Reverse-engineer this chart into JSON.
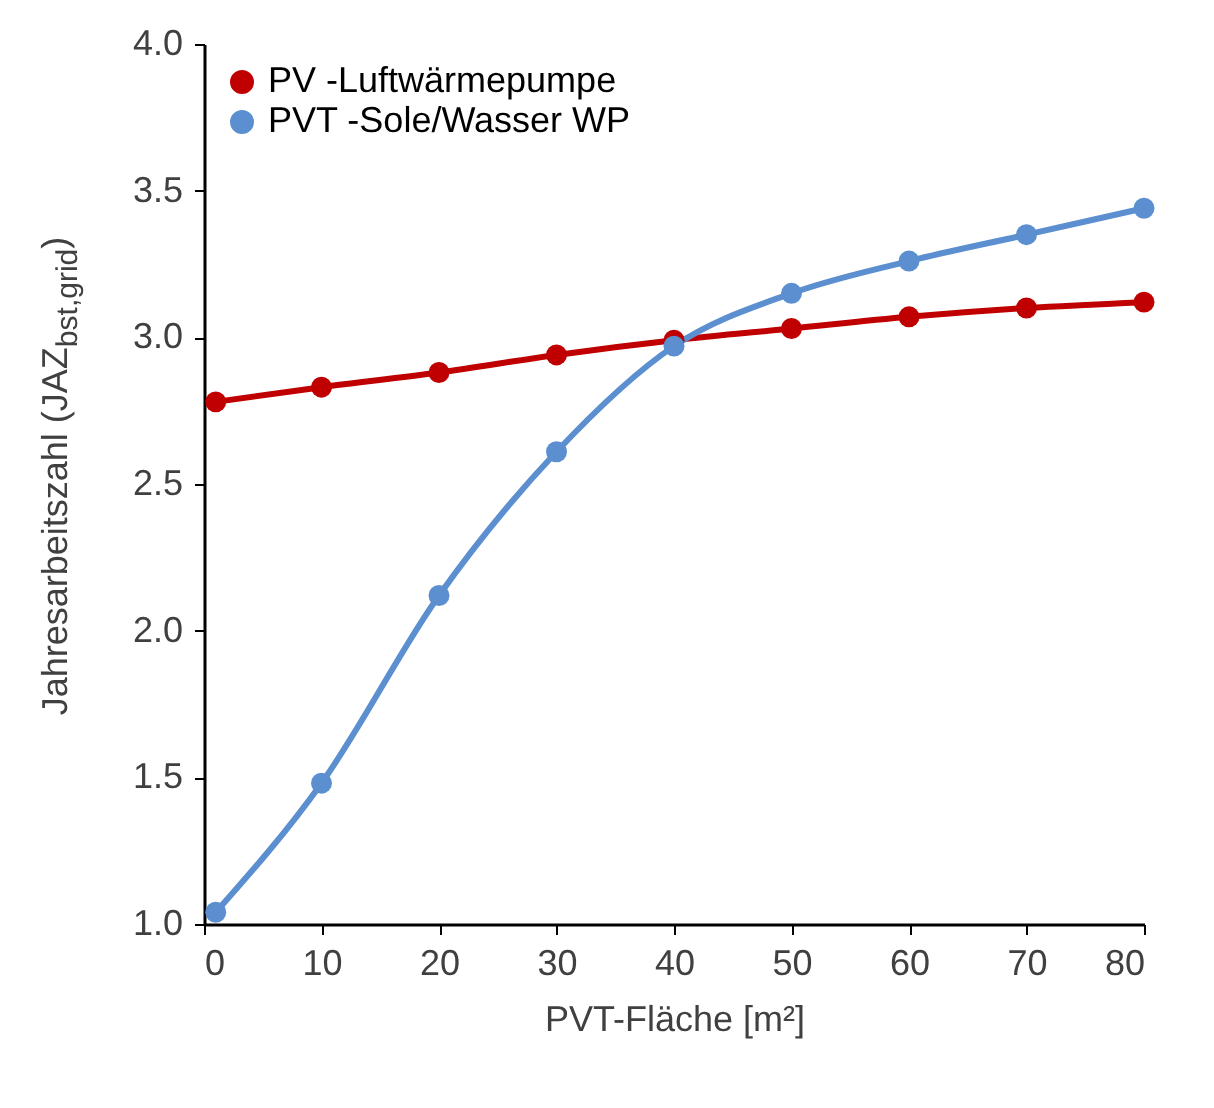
{
  "chart_data": {
    "type": "line",
    "xlabel": "PVT-Fläche [m²]",
    "ylabel": "Jahresarbeitszahl (JAZ$_{bst,grid}$)",
    "xlim": [
      0,
      80
    ],
    "xticks": [
      0,
      10,
      20,
      30,
      40,
      50,
      60,
      70,
      80
    ],
    "ylim": [
      1,
      4
    ],
    "yticks": [
      {
        "value": 1,
        "label": "1.0"
      },
      1.5,
      {
        "value": 2,
        "label": "2.0"
      },
      2.5,
      {
        "value": 3,
        "label": "3.0"
      },
      3.5,
      {
        "value": 4,
        "label": "4.0"
      }
    ],
    "grid": false,
    "legend": "top left",
    "marker": "circle",
    "line_style": "solid",
    "x": [
      1,
      10,
      20,
      30,
      40,
      50,
      60,
      70,
      80
    ],
    "series": [
      {
        "name": "PV -Luftwärmepumpe",
        "color": "#c00000",
        "values": [
          2.78,
          2.83,
          2.88,
          2.94,
          2.99,
          3.03,
          3.07,
          3.1,
          3.12
        ]
      },
      {
        "name": "PVT -Sole/Wasser WP",
        "color": "#5b8fcf",
        "values": [
          1.04,
          1.48,
          2.12,
          2.61,
          2.97,
          3.15,
          3.26,
          3.35,
          3.44
        ]
      }
    ]
  }
}
